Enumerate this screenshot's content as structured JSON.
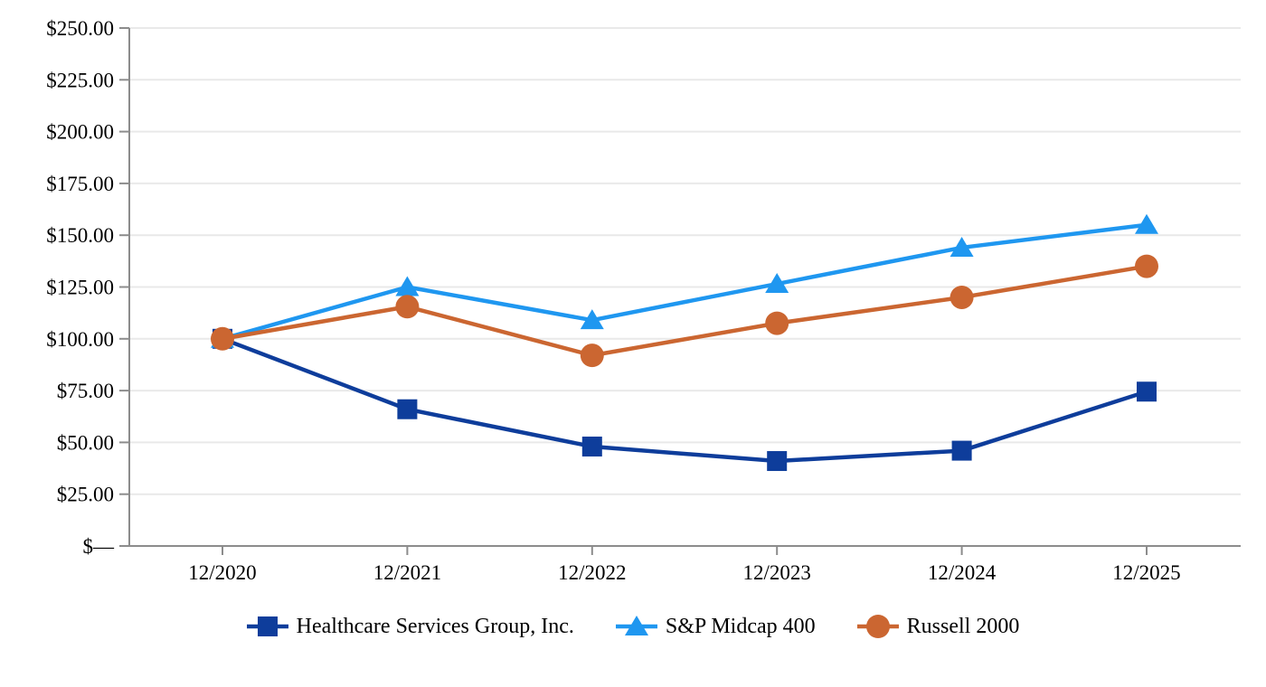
{
  "page": {
    "background_color": "#ffffff",
    "text_color": "#000000"
  },
  "chart_data": {
    "type": "line",
    "title": "",
    "xlabel": "",
    "ylabel": "",
    "x_categories": [
      "12/2020",
      "12/2021",
      "12/2022",
      "12/2023",
      "12/2024",
      "12/2025"
    ],
    "y_tick_values": [
      250,
      225,
      200,
      175,
      150,
      125,
      100,
      75,
      50,
      25,
      0
    ],
    "y_tick_labels": [
      "$250.00",
      "$225.00",
      "$200.00",
      "$175.00",
      "$150.00",
      "$125.00",
      "$100.00",
      "$75.00",
      "$50.00",
      "$25.00",
      "$—"
    ],
    "ylim": [
      0,
      250
    ],
    "grid": "horizontal",
    "legend_position": "bottom",
    "axis_color": "#8C8C8C",
    "grid_color": "#E9E9E9",
    "series": [
      {
        "name": "Healthcare Services Group, Inc.",
        "marker": "square",
        "color": "#0E3D9B",
        "values": [
          100,
          66,
          48,
          41,
          46,
          74.5
        ]
      },
      {
        "name": "S&P Midcap 400",
        "marker": "triangle",
        "color": "#1F97F0",
        "values": [
          100,
          125,
          109,
          126.5,
          144,
          155
        ]
      },
      {
        "name": "Russell 2000",
        "marker": "circle",
        "color": "#CB6631",
        "values": [
          100,
          115.5,
          92,
          107.5,
          120,
          135
        ]
      }
    ]
  }
}
